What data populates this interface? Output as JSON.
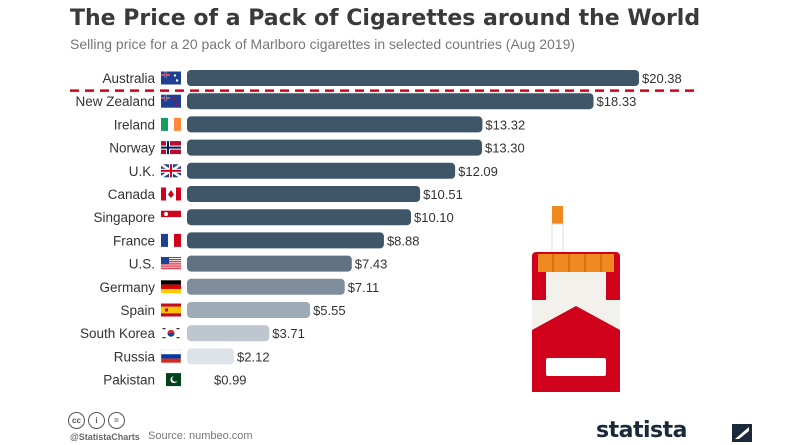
{
  "title": "The Price of a Pack of Cigarettes around the World",
  "subtitle": "Selling price for a 20 pack of Marlboro cigarettes in selected countries (Aug 2019)",
  "chart_data": {
    "type": "bar",
    "orientation": "horizontal",
    "title": "The Price of a Pack of Cigarettes around the World",
    "subtitle": "Selling price for a 20 pack of Marlboro cigarettes in selected countries (Aug 2019)",
    "categories": [
      "Australia",
      "New Zealand",
      "Ireland",
      "Norway",
      "U.K.",
      "Canada",
      "Singapore",
      "France",
      "U.S.",
      "Germany",
      "Spain",
      "South Korea",
      "Russia",
      "Pakistan"
    ],
    "values": [
      20.38,
      18.33,
      13.32,
      13.3,
      12.09,
      10.51,
      10.1,
      8.88,
      7.43,
      7.11,
      5.55,
      3.71,
      2.12,
      0.99
    ],
    "value_labels": [
      "$20.38",
      "$18.33",
      "$13.32",
      "$13.30",
      "$12.09",
      "$10.51",
      "$10.10",
      "$8.88",
      "$7.43",
      "$7.11",
      "$5.55",
      "$3.71",
      "$2.12",
      "$0.99"
    ],
    "xlim": [
      0,
      20.38
    ],
    "grid": false,
    "legend": "none",
    "annotation": "dashed red line below Australia",
    "colors": {
      "bar_dark": "#3f5568",
      "bar_light": "#eef1f6",
      "divider": "#d0021b",
      "text": "#333333"
    }
  },
  "flags": [
    "flag-australia-icon",
    "flag-new-zealand-icon",
    "flag-ireland-icon",
    "flag-norway-icon",
    "flag-uk-icon",
    "flag-canada-icon",
    "flag-singapore-icon",
    "flag-france-icon",
    "flag-us-icon",
    "flag-germany-icon",
    "flag-spain-icon",
    "flag-south-korea-icon",
    "flag-russia-icon",
    "flag-pakistan-icon"
  ],
  "illustration": "cigarette-pack-icon",
  "footer": {
    "license_icons": [
      "cc-icon",
      "by-icon",
      "nd-icon"
    ],
    "license_glyphs": [
      "cc",
      "i",
      "="
    ],
    "handle": "@StatistaCharts",
    "source": "Source: numbeo.com",
    "brand": "statista",
    "brand_icon": "statista-logo-icon"
  }
}
